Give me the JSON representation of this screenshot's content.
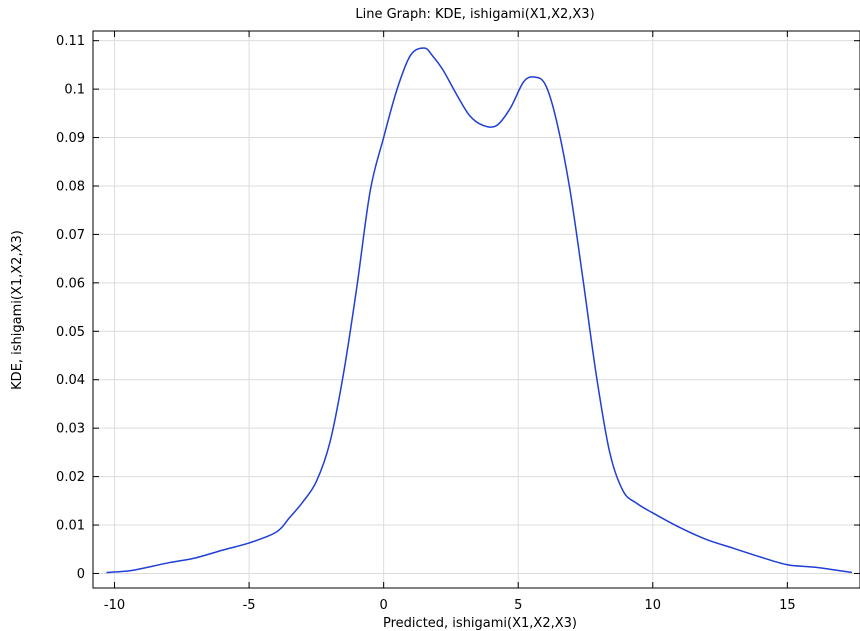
{
  "chart_data": {
    "type": "line",
    "title": "Line Graph: KDE, ishigami(X1,X2,X3)",
    "xlabel": "Predicted, ishigami(X1,X2,X3)",
    "ylabel": "KDE, ishigami(X1,X2,X3)",
    "xlim": [
      -10.8,
      17.7
    ],
    "ylim": [
      -0.003,
      0.112
    ],
    "x_ticks": [
      -10,
      -5,
      0,
      5,
      10,
      15
    ],
    "x_tick_labels": [
      "-10",
      "-5",
      "0",
      "5",
      "10",
      "15"
    ],
    "y_ticks": [
      0,
      0.01,
      0.02,
      0.03,
      0.04,
      0.05,
      0.06,
      0.07,
      0.08,
      0.09,
      0.1,
      0.11
    ],
    "y_tick_labels": [
      "0",
      "0.01",
      "0.02",
      "0.03",
      "0.04",
      "0.05",
      "0.06",
      "0.07",
      "0.08",
      "0.09",
      "0.1",
      "0.11"
    ],
    "grid": true,
    "legend": "none",
    "series": [
      {
        "color": "#1f3fd6",
        "x": [
          -10.3,
          -9.5,
          -9.0,
          -8.0,
          -7.0,
          -6.0,
          -5.0,
          -4.0,
          -3.5,
          -3.0,
          -2.5,
          -2.0,
          -1.5,
          -1.0,
          -0.5,
          0.0,
          0.5,
          1.0,
          1.5,
          1.8,
          2.2,
          2.7,
          3.2,
          3.7,
          4.2,
          4.7,
          5.2,
          5.6,
          6.0,
          6.4,
          6.9,
          7.4,
          7.9,
          8.4,
          8.9,
          9.4,
          10.0,
          11.0,
          12.0,
          13.0,
          14.0,
          15.0,
          16.0,
          17.4
        ],
        "y": [
          0.0002,
          0.0005,
          0.001,
          0.0022,
          0.0032,
          0.0048,
          0.0063,
          0.0085,
          0.0115,
          0.0148,
          0.019,
          0.027,
          0.041,
          0.059,
          0.079,
          0.09,
          0.1,
          0.107,
          0.1085,
          0.107,
          0.104,
          0.099,
          0.0945,
          0.0925,
          0.0925,
          0.096,
          0.1015,
          0.1025,
          0.101,
          0.094,
          0.08,
          0.061,
          0.041,
          0.025,
          0.017,
          0.0145,
          0.0125,
          0.0095,
          0.007,
          0.0052,
          0.0034,
          0.0018,
          0.0013,
          0.0002
        ]
      }
    ]
  }
}
